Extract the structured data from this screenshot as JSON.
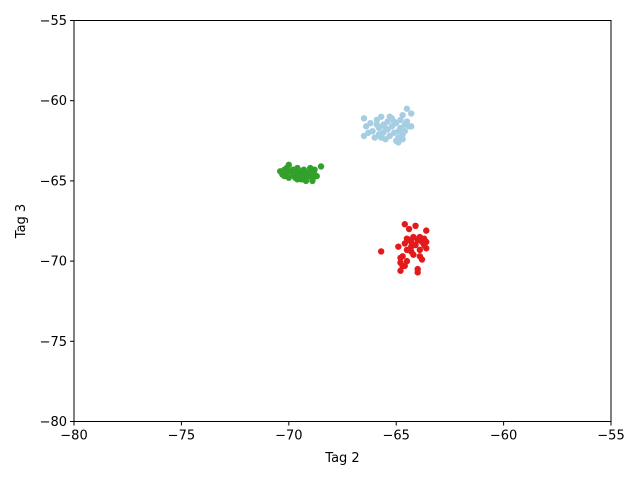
{
  "chart_data": {
    "type": "scatter",
    "xlabel": "Tag 2",
    "ylabel": "Tag 3",
    "xlim": [
      -80,
      -55
    ],
    "ylim": [
      -80,
      -55
    ],
    "x_ticks": [
      -80,
      -75,
      -70,
      -65,
      -60,
      -55
    ],
    "y_ticks": [
      -80,
      -75,
      -70,
      -65,
      -60,
      -55
    ],
    "x_tick_labels": [
      "−80",
      "−75",
      "−70",
      "−65",
      "−60",
      "−55"
    ],
    "y_tick_labels": [
      "−80",
      "−75",
      "−70",
      "−65",
      "−60",
      "−55"
    ],
    "grid": false,
    "legend": "none",
    "series": [
      {
        "color": "#a6cee3",
        "points": [
          [
            -66.5,
            -61.1
          ],
          [
            -66.4,
            -61.6
          ],
          [
            -66.5,
            -62.2
          ],
          [
            -66.2,
            -61.4
          ],
          [
            -66.1,
            -61.9
          ],
          [
            -66.0,
            -62.3
          ],
          [
            -65.9,
            -61.2
          ],
          [
            -65.8,
            -61.7
          ],
          [
            -65.8,
            -62.1
          ],
          [
            -65.7,
            -61.0
          ],
          [
            -65.6,
            -61.5
          ],
          [
            -65.6,
            -62.0
          ],
          [
            -65.5,
            -62.4
          ],
          [
            -65.4,
            -61.3
          ],
          [
            -65.4,
            -61.8
          ],
          [
            -65.3,
            -62.2
          ],
          [
            -65.2,
            -61.1
          ],
          [
            -65.2,
            -61.6
          ],
          [
            -65.1,
            -62.0
          ],
          [
            -65.0,
            -62.5
          ],
          [
            -65.0,
            -61.4
          ],
          [
            -64.9,
            -61.9
          ],
          [
            -64.9,
            -62.3
          ],
          [
            -64.8,
            -61.2
          ],
          [
            -64.8,
            -61.7
          ],
          [
            -64.7,
            -62.1
          ],
          [
            -64.7,
            -60.9
          ],
          [
            -64.6,
            -61.5
          ],
          [
            -64.6,
            -61.9
          ],
          [
            -64.5,
            -60.5
          ],
          [
            -64.5,
            -61.3
          ],
          [
            -64.4,
            -61.6
          ],
          [
            -64.3,
            -60.8
          ],
          [
            -64.3,
            -61.6
          ],
          [
            -64.9,
            -62.6
          ],
          [
            -65.7,
            -62.3
          ],
          [
            -66.3,
            -62.0
          ],
          [
            -65.3,
            -61.0
          ],
          [
            -65.9,
            -61.5
          ],
          [
            -64.7,
            -62.4
          ],
          [
            -65.5,
            -61.7
          ],
          [
            -65.1,
            -61.3
          ]
        ]
      },
      {
        "color": "#33a02c",
        "points": [
          [
            -70.4,
            -64.4
          ],
          [
            -70.3,
            -64.6
          ],
          [
            -70.2,
            -64.3
          ],
          [
            -70.2,
            -64.7
          ],
          [
            -70.1,
            -64.5
          ],
          [
            -70.0,
            -64.0
          ],
          [
            -70.0,
            -64.8
          ],
          [
            -69.9,
            -64.4
          ],
          [
            -69.8,
            -64.6
          ],
          [
            -69.8,
            -64.3
          ],
          [
            -69.7,
            -64.8
          ],
          [
            -69.7,
            -64.5
          ],
          [
            -69.6,
            -64.2
          ],
          [
            -69.5,
            -64.7
          ],
          [
            -69.5,
            -64.4
          ],
          [
            -69.4,
            -64.9
          ],
          [
            -69.3,
            -64.6
          ],
          [
            -69.3,
            -64.3
          ],
          [
            -69.2,
            -64.8
          ],
          [
            -69.2,
            -65.0
          ],
          [
            -69.1,
            -64.5
          ],
          [
            -69.0,
            -64.2
          ],
          [
            -69.0,
            -64.7
          ],
          [
            -68.9,
            -64.4
          ],
          [
            -68.9,
            -64.9
          ],
          [
            -68.8,
            -64.6
          ],
          [
            -68.8,
            -64.3
          ],
          [
            -68.7,
            -64.7
          ],
          [
            -68.5,
            -64.1
          ],
          [
            -69.6,
            -64.9
          ],
          [
            -70.1,
            -64.2
          ],
          [
            -68.9,
            -65.0
          ]
        ]
      },
      {
        "color": "#e31a1c",
        "points": [
          [
            -65.7,
            -69.4
          ],
          [
            -64.9,
            -69.1
          ],
          [
            -64.8,
            -70.1
          ],
          [
            -64.8,
            -70.6
          ],
          [
            -64.7,
            -69.7
          ],
          [
            -64.7,
            -70.3
          ],
          [
            -64.6,
            -67.7
          ],
          [
            -64.6,
            -68.9
          ],
          [
            -64.5,
            -69.3
          ],
          [
            -64.5,
            -70.0
          ],
          [
            -64.4,
            -68.0
          ],
          [
            -64.4,
            -68.7
          ],
          [
            -64.3,
            -69.1
          ],
          [
            -64.3,
            -68.8
          ],
          [
            -64.2,
            -69.6
          ],
          [
            -64.2,
            -68.5
          ],
          [
            -64.1,
            -67.8
          ],
          [
            -64.1,
            -69.0
          ],
          [
            -64.0,
            -68.7
          ],
          [
            -64.0,
            -70.5
          ],
          [
            -63.9,
            -68.5
          ],
          [
            -63.9,
            -69.3
          ],
          [
            -63.8,
            -68.8
          ],
          [
            -63.8,
            -69.9
          ],
          [
            -63.7,
            -68.6
          ],
          [
            -63.6,
            -69.2
          ],
          [
            -63.6,
            -68.8
          ],
          [
            -63.6,
            -68.1
          ],
          [
            -64.0,
            -70.7
          ],
          [
            -64.6,
            -70.3
          ],
          [
            -64.3,
            -69.4
          ],
          [
            -63.9,
            -69.7
          ],
          [
            -64.8,
            -69.8
          ],
          [
            -64.5,
            -68.6
          ],
          [
            -63.7,
            -69.0
          ]
        ]
      }
    ]
  }
}
